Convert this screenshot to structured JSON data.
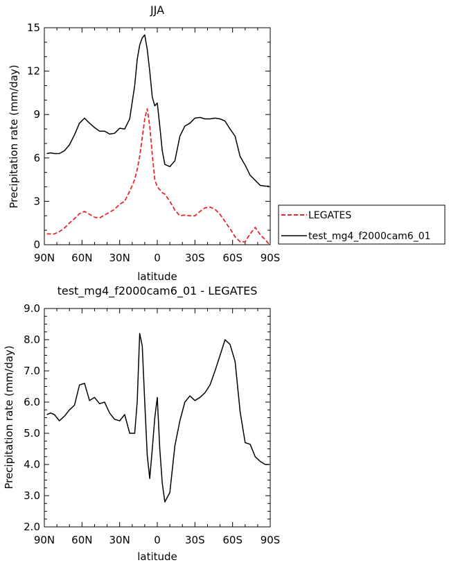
{
  "chart_data": [
    {
      "type": "line",
      "title": "JJA",
      "xlabel": "latitude",
      "ylabel": "Precipitation rate (mm/day)",
      "xlim": [
        90,
        -90
      ],
      "ylim": [
        0,
        15
      ],
      "xticks": [
        90,
        60,
        30,
        0,
        -30,
        -60,
        -90
      ],
      "xtick_labels": [
        "90N",
        "60N",
        "30N",
        "0",
        "30S",
        "60S",
        "90S"
      ],
      "yticks": [
        0,
        3,
        6,
        9,
        12,
        15
      ],
      "ytick_labels": [
        "0",
        "3",
        "6",
        "9",
        "12",
        "15"
      ],
      "legend_position": "right",
      "series": [
        {
          "name": "LEGATES",
          "color": "#e8262a",
          "style": "dashed",
          "x": [
            88,
            85,
            82,
            78,
            74,
            70,
            66,
            62,
            58,
            54,
            50,
            46,
            42,
            38,
            34,
            30,
            26,
            22,
            18,
            16,
            14,
            12,
            10,
            8,
            6,
            4,
            2,
            0,
            -2,
            -4,
            -6,
            -10,
            -14,
            -18,
            -22,
            -26,
            -30,
            -34,
            -38,
            -42,
            -46,
            -50,
            -54,
            -58,
            -62,
            -66,
            -70,
            -74,
            -78,
            -82,
            -86,
            -89
          ],
          "y": [
            0.75,
            0.75,
            0.75,
            0.9,
            1.15,
            1.5,
            1.8,
            2.15,
            2.3,
            2.1,
            1.9,
            1.85,
            2.05,
            2.25,
            2.45,
            2.8,
            3.0,
            3.7,
            4.5,
            5.2,
            6.1,
            7.4,
            8.7,
            9.4,
            8.2,
            6.2,
            4.5,
            4.0,
            3.8,
            3.6,
            3.5,
            3.0,
            2.4,
            2.0,
            2.05,
            2.0,
            2.0,
            2.3,
            2.55,
            2.6,
            2.45,
            2.1,
            1.6,
            1.1,
            0.55,
            0.2,
            0.2,
            0.75,
            1.2,
            0.7,
            0.35,
            0.05
          ]
        },
        {
          "name": "test_mg4_f2000cam6_01",
          "color": "#000000",
          "style": "solid",
          "x": [
            88,
            85,
            82,
            78,
            74,
            70,
            66,
            62,
            58,
            54,
            50,
            46,
            42,
            38,
            34,
            30,
            26,
            22,
            18,
            16,
            14,
            12,
            10,
            8,
            6,
            4,
            2,
            0,
            -2,
            -4,
            -6,
            -10,
            -14,
            -18,
            -22,
            -26,
            -30,
            -34,
            -38,
            -42,
            -46,
            -50,
            -54,
            -58,
            -62,
            -66,
            -70,
            -74,
            -78,
            -82,
            -86,
            -89
          ],
          "y": [
            6.3,
            6.35,
            6.3,
            6.3,
            6.5,
            6.9,
            7.6,
            8.4,
            8.75,
            8.4,
            8.1,
            7.85,
            7.85,
            7.65,
            7.7,
            8.05,
            8.0,
            8.7,
            11.0,
            12.8,
            13.8,
            14.3,
            14.5,
            13.5,
            12.0,
            10.2,
            9.6,
            9.8,
            8.2,
            6.5,
            5.55,
            5.4,
            5.8,
            7.5,
            8.2,
            8.4,
            8.75,
            8.8,
            8.7,
            8.7,
            8.75,
            8.7,
            8.55,
            8.0,
            7.5,
            6.1,
            5.5,
            4.8,
            4.45,
            4.1,
            4.05,
            4.05
          ]
        }
      ]
    },
    {
      "type": "line",
      "title": "test_mg4_f2000cam6_01 - LEGATES",
      "xlabel": "latitude",
      "ylabel": "Precipitation rate (mm/day)",
      "xlim": [
        90,
        -90
      ],
      "ylim": [
        2.0,
        9.0
      ],
      "xticks": [
        90,
        60,
        30,
        0,
        -30,
        -60,
        -90
      ],
      "xtick_labels": [
        "90N",
        "60N",
        "30N",
        "0",
        "30S",
        "60S",
        "90S"
      ],
      "yticks": [
        2,
        3,
        4,
        5,
        6,
        7,
        8,
        9
      ],
      "ytick_labels": [
        "2.0",
        "3.0",
        "4.0",
        "5.0",
        "6.0",
        "7.0",
        "8.0",
        "9.0"
      ],
      "series": [
        {
          "color": "#000000",
          "style": "solid",
          "x": [
            88,
            85,
            82,
            78,
            74,
            70,
            66,
            62,
            58,
            54,
            50,
            46,
            42,
            38,
            34,
            30,
            26,
            22,
            18,
            16,
            14,
            12,
            10,
            8,
            6,
            4,
            2,
            0,
            -2,
            -4,
            -6,
            -10,
            -14,
            -18,
            -22,
            -26,
            -30,
            -34,
            -38,
            -42,
            -46,
            -50,
            -54,
            -58,
            -62,
            -66,
            -70,
            -74,
            -78,
            -82,
            -86,
            -89
          ],
          "y": [
            5.6,
            5.65,
            5.6,
            5.4,
            5.55,
            5.75,
            5.9,
            6.55,
            6.6,
            6.05,
            6.15,
            5.95,
            6.0,
            5.65,
            5.45,
            5.4,
            5.6,
            5.0,
            5.0,
            6.0,
            8.2,
            7.8,
            6.0,
            4.3,
            3.55,
            4.5,
            5.5,
            6.15,
            4.5,
            3.4,
            2.8,
            3.1,
            4.6,
            5.4,
            6.0,
            6.2,
            6.05,
            6.15,
            6.3,
            6.55,
            7.0,
            7.5,
            8.0,
            7.85,
            7.3,
            5.7,
            4.7,
            4.65,
            4.25,
            4.1,
            4.0,
            4.0
          ]
        }
      ]
    }
  ]
}
